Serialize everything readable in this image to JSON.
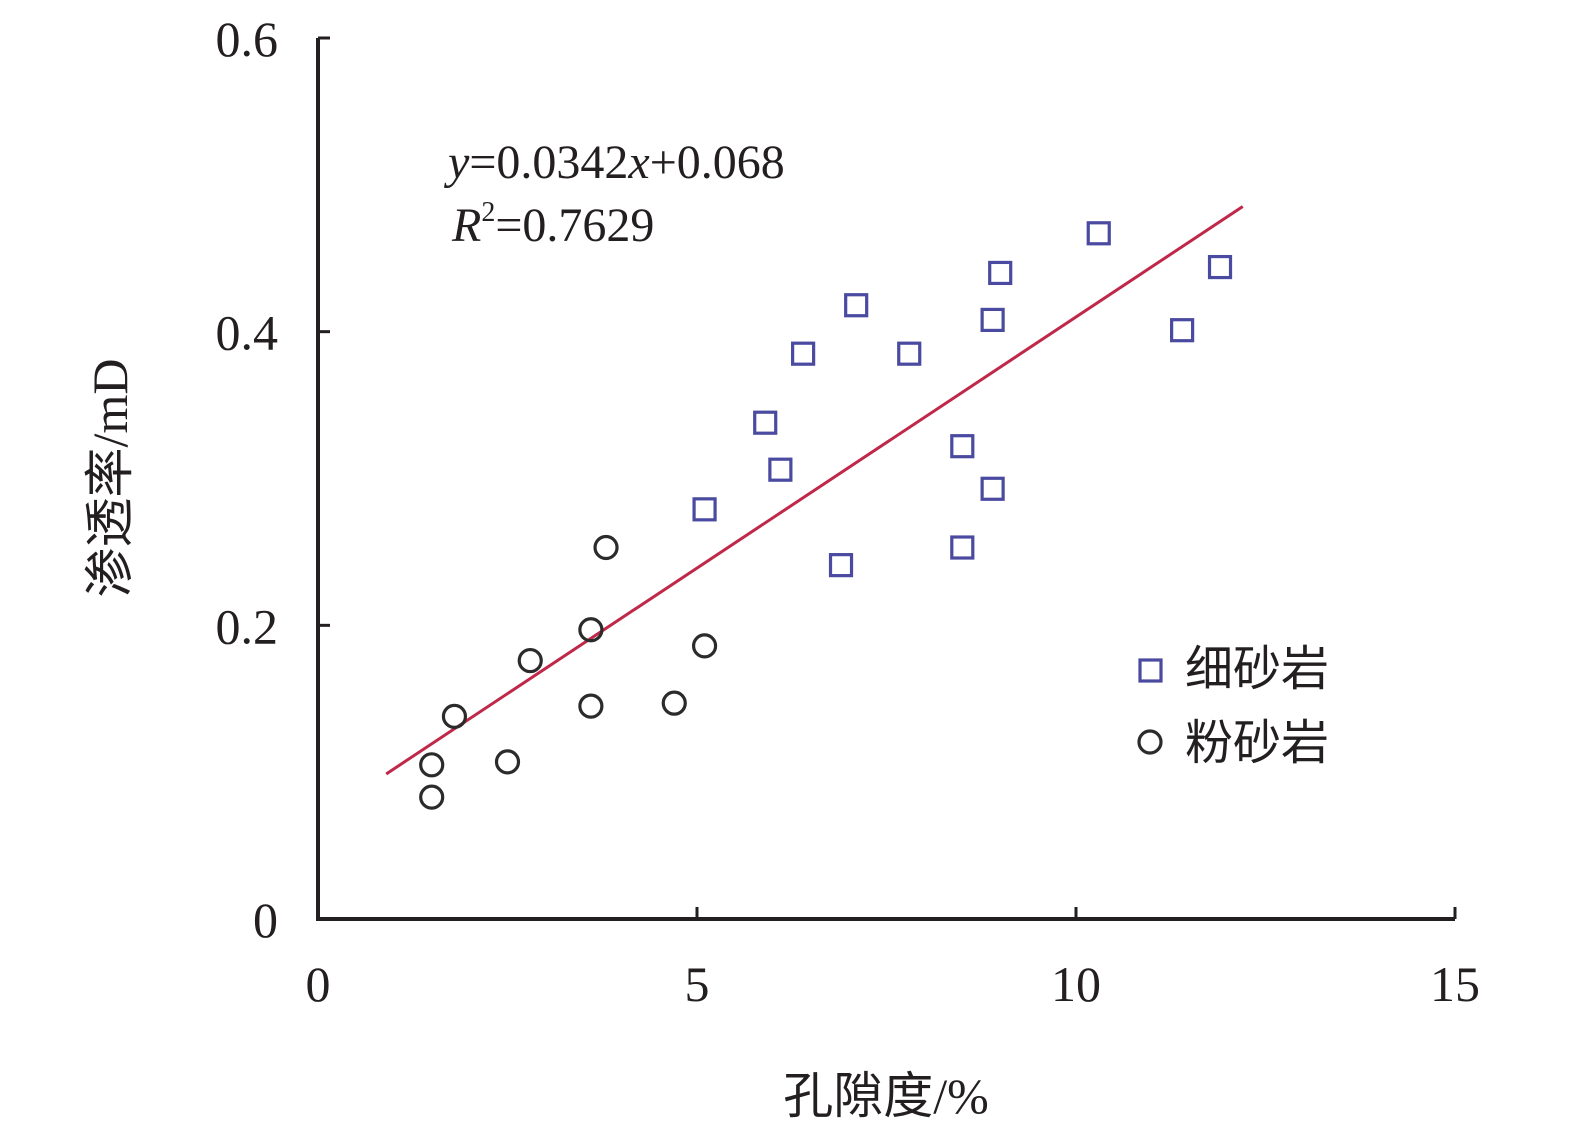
{
  "chart_data": {
    "type": "scatter",
    "xlabel": "孔隙度/%",
    "ylabel": "渗透率/mD",
    "xlim": [
      0,
      15
    ],
    "ylim": [
      0,
      0.6
    ],
    "xticks": [
      0,
      5,
      10,
      15
    ],
    "xtick_labels": [
      "0",
      "5",
      "10",
      "15"
    ],
    "yticks": [
      0,
      0.2,
      0.4,
      0.6
    ],
    "ytick_labels": [
      "0",
      "0.2",
      "0.4",
      "0.6"
    ],
    "grid": false,
    "legend_position": "right",
    "series": [
      {
        "name": "细砂岩",
        "marker": "square",
        "color": "#4a4aa0",
        "points": [
          {
            "x": 5.1,
            "y": 0.279
          },
          {
            "x": 5.9,
            "y": 0.338
          },
          {
            "x": 6.1,
            "y": 0.306
          },
          {
            "x": 6.4,
            "y": 0.385
          },
          {
            "x": 6.9,
            "y": 0.241
          },
          {
            "x": 7.1,
            "y": 0.418
          },
          {
            "x": 7.8,
            "y": 0.385
          },
          {
            "x": 8.5,
            "y": 0.322
          },
          {
            "x": 8.5,
            "y": 0.253
          },
          {
            "x": 8.9,
            "y": 0.408
          },
          {
            "x": 8.9,
            "y": 0.293
          },
          {
            "x": 9.0,
            "y": 0.44
          },
          {
            "x": 10.3,
            "y": 0.467
          },
          {
            "x": 11.4,
            "y": 0.401
          },
          {
            "x": 11.9,
            "y": 0.444
          }
        ]
      },
      {
        "name": "粉砂岩",
        "marker": "circle",
        "color": "#2b2b2b",
        "points": [
          {
            "x": 1.5,
            "y": 0.083
          },
          {
            "x": 1.5,
            "y": 0.105
          },
          {
            "x": 1.8,
            "y": 0.138
          },
          {
            "x": 2.5,
            "y": 0.107
          },
          {
            "x": 2.8,
            "y": 0.176
          },
          {
            "x": 3.6,
            "y": 0.197
          },
          {
            "x": 3.6,
            "y": 0.145
          },
          {
            "x": 3.8,
            "y": 0.253
          },
          {
            "x": 4.7,
            "y": 0.147
          },
          {
            "x": 5.1,
            "y": 0.186
          }
        ]
      }
    ],
    "trendline": {
      "slope": 0.0342,
      "intercept": 0.068,
      "x_start": 0.9,
      "x_end": 12.2,
      "color": "#c0284a"
    },
    "annotation": {
      "equation": {
        "y": "y",
        "rest1": "=0.0342",
        "x": "x",
        "rest2": "+0.068"
      },
      "r2": {
        "R": "R",
        "sup": "2",
        "rest": "=0.7629"
      }
    }
  }
}
